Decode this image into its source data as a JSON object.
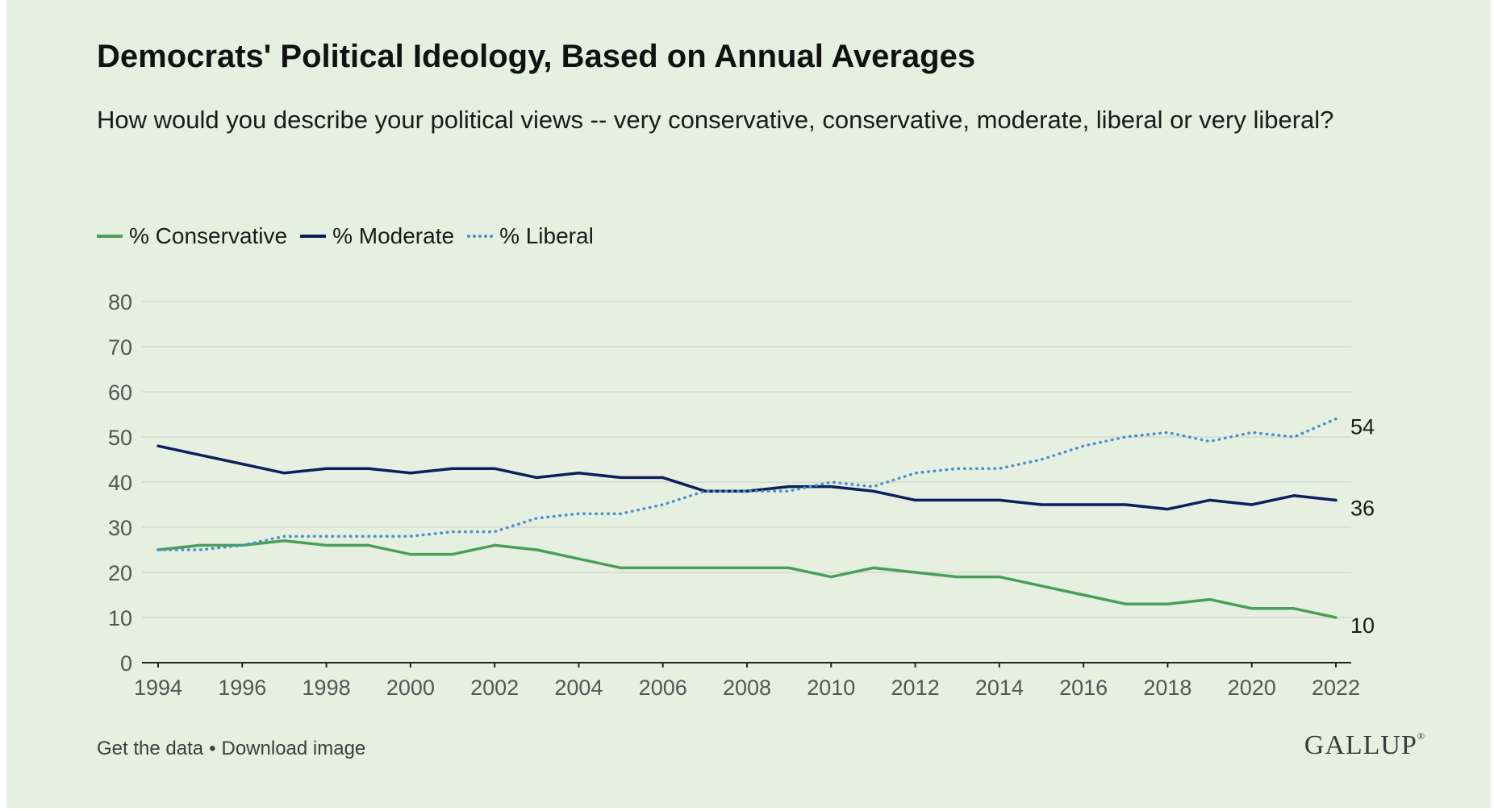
{
  "header": {
    "title": "Democrats' Political Ideology, Based on Annual Averages",
    "subtitle": "How would you describe your political views -- very conservative, conservative, moderate, liberal or very liberal?"
  },
  "footer": {
    "get_data": "Get the data",
    "separator": "•",
    "download": "Download image",
    "logo": "GALLUP"
  },
  "colors": {
    "background": "#e6f0e0",
    "conservative": "#4a9e57",
    "moderate": "#0b1f5c",
    "liberal": "#4a8fc9",
    "grid": "#d2d9cf",
    "axis": "#222222",
    "tick_label": "#555555"
  },
  "chart_data": {
    "type": "line",
    "title": "Democrats' Political Ideology, Based on Annual Averages",
    "xlabel": "",
    "ylabel": "",
    "xlim": [
      1994,
      2022
    ],
    "ylim": [
      0,
      80
    ],
    "yticks": [
      0,
      10,
      20,
      30,
      40,
      50,
      60,
      70,
      80
    ],
    "xticks": [
      1994,
      1996,
      1998,
      2000,
      2002,
      2004,
      2006,
      2008,
      2010,
      2012,
      2014,
      2016,
      2018,
      2020,
      2022
    ],
    "grid": true,
    "legend": "top-left",
    "x": [
      1994,
      1995,
      1996,
      1997,
      1998,
      1999,
      2000,
      2001,
      2002,
      2003,
      2004,
      2005,
      2006,
      2007,
      2008,
      2009,
      2010,
      2011,
      2012,
      2013,
      2014,
      2015,
      2016,
      2017,
      2018,
      2019,
      2020,
      2021,
      2022
    ],
    "series": [
      {
        "name": "% Conservative",
        "style": "solid",
        "color": "#4a9e57",
        "values": [
          25,
          26,
          26,
          27,
          26,
          26,
          24,
          24,
          26,
          25,
          23,
          21,
          21,
          21,
          21,
          21,
          19,
          21,
          20,
          19,
          19,
          17,
          15,
          13,
          13,
          14,
          12,
          12,
          10
        ],
        "end_label": "10"
      },
      {
        "name": "% Moderate",
        "style": "solid",
        "color": "#0b1f5c",
        "values": [
          48,
          46,
          44,
          42,
          43,
          43,
          42,
          43,
          43,
          41,
          42,
          41,
          41,
          38,
          38,
          39,
          39,
          38,
          36,
          36,
          36,
          35,
          35,
          35,
          34,
          36,
          35,
          37,
          36
        ],
        "end_label": "36"
      },
      {
        "name": "% Liberal",
        "style": "dotted",
        "color": "#4a8fc9",
        "values": [
          25,
          25,
          26,
          28,
          28,
          28,
          28,
          29,
          29,
          32,
          33,
          33,
          35,
          38,
          38,
          38,
          40,
          39,
          42,
          43,
          43,
          45,
          48,
          50,
          51,
          49,
          51,
          50,
          54
        ],
        "end_label": "54"
      }
    ]
  }
}
